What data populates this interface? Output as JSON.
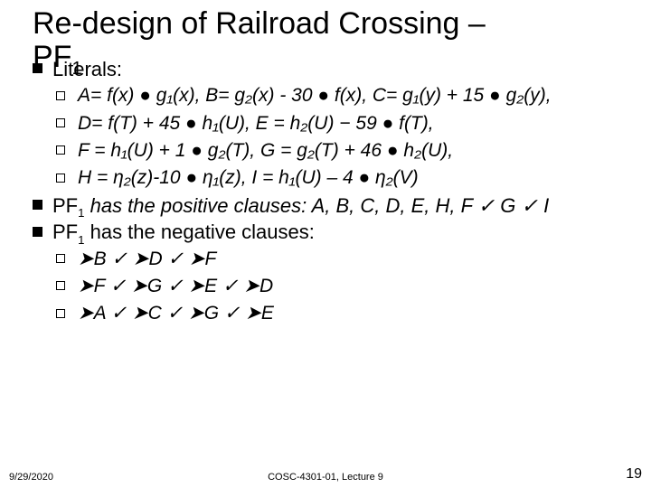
{
  "title_l1": "Re-design of Railroad Crossing –",
  "title_l2_pre": "PF",
  "title_l2_sub": "1",
  "bullets": {
    "literals_label": "Literals:",
    "defs": {
      "a": "A= f(x) ● g₁(x), B= g₂(x) - 30 ● f(x), C= g₁(y) + 15 ● g₂(y),",
      "d": "D= f(T) + 45 ● h₁(U), E = h₂(U) − 59 ● f(T),",
      "f": "F = h₁(U) + 1 ● g₂(T), G = g₂(T) + 46 ● h₂(U),",
      "h": "H = η₂(z)-10 ● η₁(z), I = h₁(U) – 4 ● η₂(V)"
    },
    "pos_pre": "PF",
    "pos_sub": "1",
    "pos_text": " has the positive clauses: A, B, C, D, E, H, F ✓ G ✓ I",
    "neg_pre": "PF",
    "neg_sub": "1",
    "neg_text": " has the negative clauses:",
    "neg_rows": {
      "r1": "➤B ✓ ➤D ✓ ➤F",
      "r2": "➤F ✓ ➤G ✓ ➤E ✓ ➤D",
      "r3": "➤A ✓ ➤C ✓ ➤G ✓ ➤E"
    }
  },
  "footer": {
    "date": "9/29/2020",
    "center": "COSC-4301-01, Lecture 9",
    "page": "19"
  },
  "colors": {
    "bg": "#ffffff",
    "text": "#000000"
  }
}
